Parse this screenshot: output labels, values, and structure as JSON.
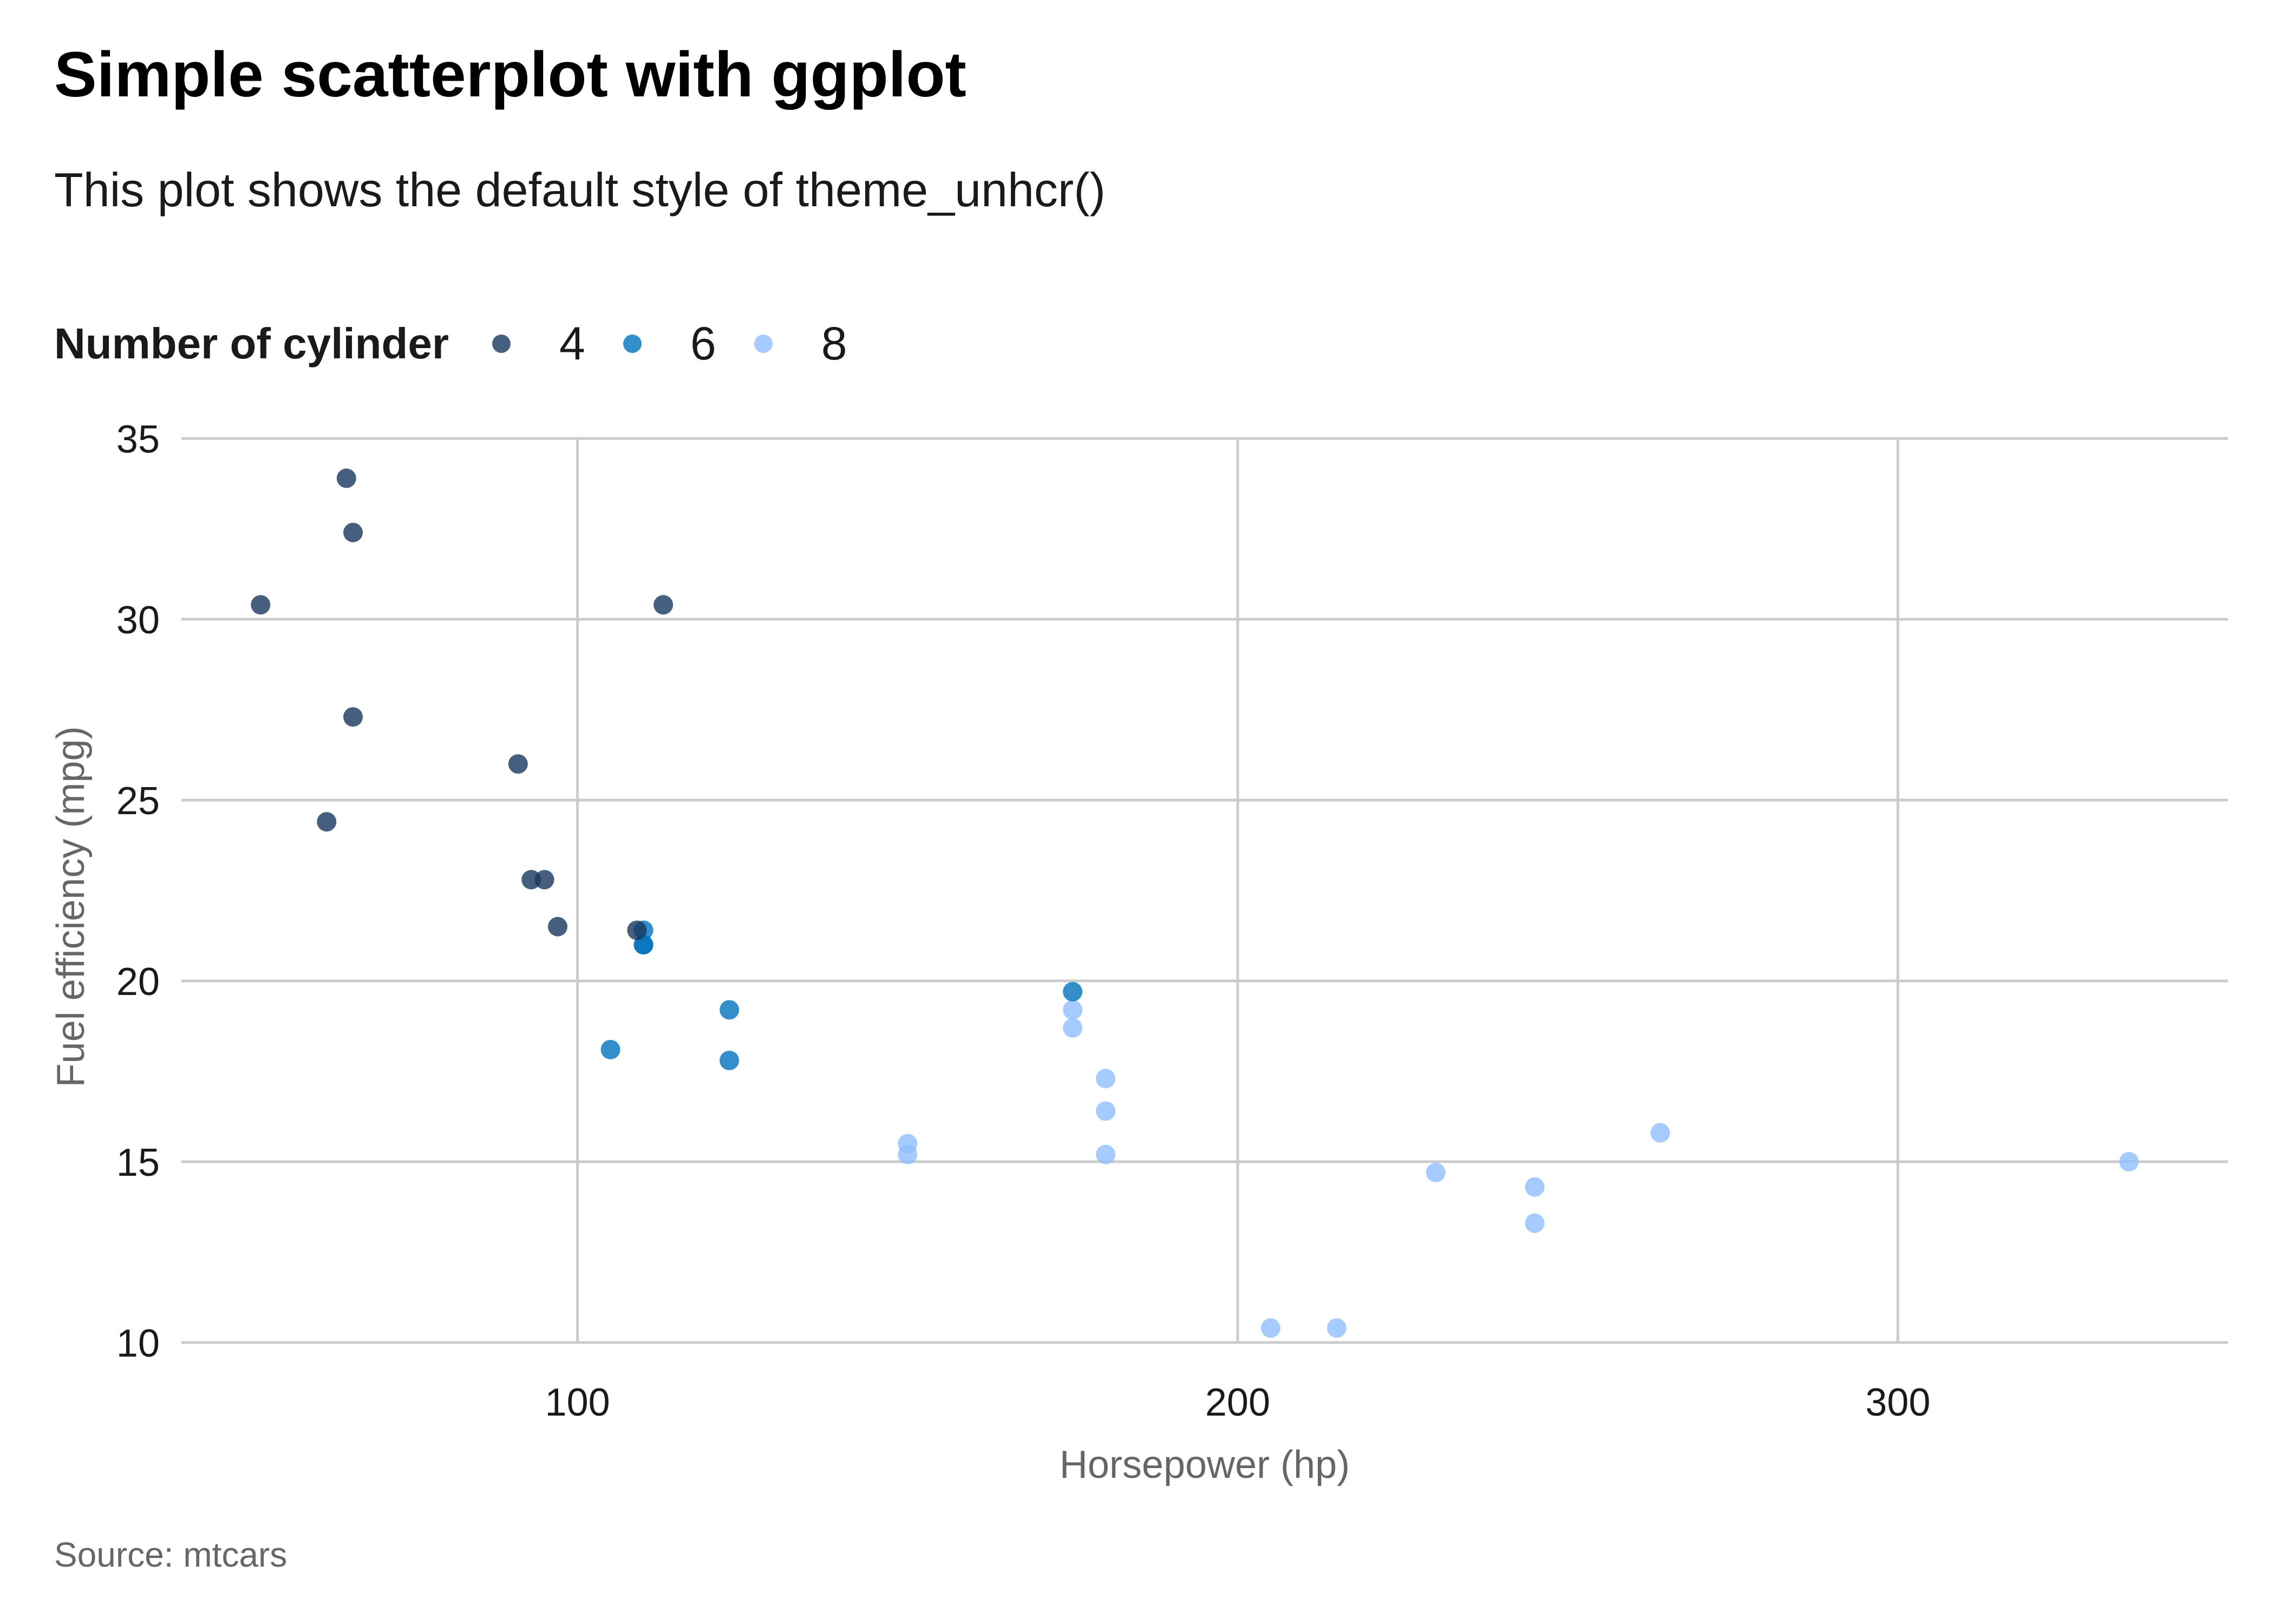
{
  "chart_data": {
    "type": "scatter",
    "title": "Simple scatterplot with ggplot",
    "subtitle": "This plot shows the default style of theme_unhcr()",
    "caption": "Source: mtcars",
    "xlabel": "Horsepower (hp)",
    "ylabel": "Fuel efficiency (mpg)",
    "xlim": [
      40,
      350
    ],
    "ylim": [
      10,
      35
    ],
    "xticks": [
      100,
      200,
      300
    ],
    "yticks": [
      10,
      15,
      20,
      25,
      30,
      35
    ],
    "grid": true,
    "legend": {
      "title": "Number of cylinder",
      "position": "top-left",
      "entries": [
        "4",
        "6",
        "8"
      ]
    },
    "series": [
      {
        "name": "4",
        "color": "#18375F",
        "points": [
          [
            93,
            22.8
          ],
          [
            62,
            24.4
          ],
          [
            95,
            22.8
          ],
          [
            66,
            32.4
          ],
          [
            52,
            30.4
          ],
          [
            65,
            33.9
          ],
          [
            97,
            21.5
          ],
          [
            66,
            27.3
          ],
          [
            91,
            26.0
          ],
          [
            113,
            30.4
          ],
          [
            109,
            21.4
          ]
        ]
      },
      {
        "name": "6",
        "color": "#0072BC",
        "points": [
          [
            110,
            21.0
          ],
          [
            110,
            21.0
          ],
          [
            110,
            21.4
          ],
          [
            105,
            18.1
          ],
          [
            123,
            19.2
          ],
          [
            123,
            17.8
          ],
          [
            175,
            19.7
          ]
        ]
      },
      {
        "name": "8",
        "color": "#8EBEFF",
        "points": [
          [
            175,
            18.7
          ],
          [
            245,
            14.3
          ],
          [
            180,
            16.4
          ],
          [
            180,
            17.3
          ],
          [
            180,
            15.2
          ],
          [
            205,
            10.4
          ],
          [
            215,
            10.4
          ],
          [
            230,
            14.7
          ],
          [
            150,
            15.5
          ],
          [
            150,
            15.2
          ],
          [
            245,
            13.3
          ],
          [
            175,
            19.2
          ],
          [
            264,
            15.8
          ],
          [
            335,
            15.0
          ]
        ]
      }
    ]
  }
}
